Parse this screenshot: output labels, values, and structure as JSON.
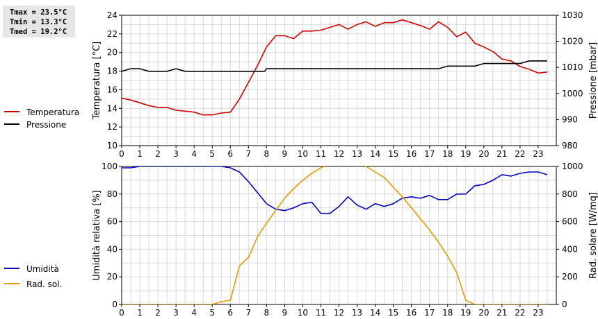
{
  "stats": {
    "tmax": "Tmax = 23.5°C",
    "tmin": "Tmin = 13.3°C",
    "tmed": "Tmed = 19.2°C"
  },
  "chart_data": [
    {
      "type": "line",
      "ylabel": "Temperatura [°C]",
      "y2label": "Pressione [mbar]",
      "ylim": [
        10,
        24
      ],
      "yticks": [
        10,
        12,
        14,
        16,
        18,
        20,
        22,
        24
      ],
      "y2lim": [
        980,
        1030
      ],
      "y2ticks": [
        980,
        990,
        1000,
        1010,
        1020,
        1030
      ],
      "xlim": [
        0,
        24
      ],
      "xticks": [
        "0",
        "1",
        "2",
        "3",
        "4",
        "5",
        "6",
        "7",
        "8",
        "9",
        "10",
        "11",
        "12",
        "13",
        "14",
        "15",
        "16",
        "17",
        "18",
        "19",
        "20",
        "21",
        "22",
        "23"
      ],
      "grid": true,
      "legend_position": "left",
      "series": [
        {
          "name": "Temperatura",
          "axis": "left",
          "color": "#cc0000",
          "x": [
            0,
            0.5,
            1,
            1.5,
            2,
            2.5,
            3,
            3.5,
            4,
            4.5,
            5,
            5.5,
            6,
            6.5,
            7,
            7.5,
            8,
            8.5,
            9,
            9.5,
            10,
            10.5,
            11,
            11.5,
            12,
            12.5,
            13,
            13.5,
            14,
            14.5,
            15,
            15.5,
            16,
            16.5,
            17,
            17.5,
            18,
            18.5,
            19,
            19.5,
            20,
            20.5,
            21,
            21.5,
            22,
            22.5,
            23,
            23.5
          ],
          "y": [
            15.1,
            14.9,
            14.6,
            14.3,
            14.1,
            14.1,
            13.8,
            13.7,
            13.6,
            13.3,
            13.3,
            13.5,
            13.6,
            15.0,
            16.8,
            18.6,
            20.6,
            21.8,
            21.8,
            21.5,
            22.3,
            22.3,
            22.4,
            22.7,
            23.0,
            22.5,
            23.0,
            23.3,
            22.8,
            23.2,
            23.2,
            23.5,
            23.2,
            22.9,
            22.5,
            23.3,
            22.7,
            21.7,
            22.2,
            21.0,
            20.6,
            20.1,
            19.3,
            19.1,
            18.5,
            18.2,
            17.8,
            17.9
          ]
        },
        {
          "name": "Pressione",
          "axis": "right",
          "color": "#000000",
          "x": [
            0,
            0.5,
            1,
            1.5,
            2,
            2.5,
            3,
            3.5,
            4,
            5,
            6,
            7,
            7.9,
            8,
            9,
            10,
            11,
            12,
            13,
            14,
            15,
            16,
            17,
            17.5,
            18,
            18.5,
            19,
            19.5,
            20,
            20.5,
            21,
            22,
            22.5,
            23,
            23.5
          ],
          "y": [
            1008.5,
            1009.5,
            1009.5,
            1008.5,
            1008.5,
            1008.5,
            1009.5,
            1008.5,
            1008.5,
            1008.5,
            1008.5,
            1008.5,
            1008.5,
            1009.5,
            1009.5,
            1009.5,
            1009.5,
            1009.5,
            1009.5,
            1009.5,
            1009.5,
            1009.5,
            1009.5,
            1009.5,
            1010.5,
            1010.5,
            1010.5,
            1010.5,
            1011.5,
            1011.5,
            1011.5,
            1011.5,
            1012.5,
            1012.5,
            1012.5
          ]
        }
      ]
    },
    {
      "type": "line",
      "ylabel": "Umidità relativa [%]",
      "y2label": "Rad. solare [W/mq]",
      "ylim": [
        0,
        100
      ],
      "yticks": [
        0,
        20,
        40,
        60,
        80,
        100
      ],
      "y2lim": [
        0,
        1000
      ],
      "y2ticks": [
        0,
        200,
        400,
        600,
        800,
        1000
      ],
      "xlim": [
        0,
        24
      ],
      "xticks": [
        "0",
        "1",
        "2",
        "3",
        "4",
        "5",
        "6",
        "7",
        "8",
        "9",
        "10",
        "11",
        "12",
        "13",
        "14",
        "15",
        "16",
        "17",
        "18",
        "19",
        "20",
        "21",
        "22",
        "23"
      ],
      "grid": true,
      "legend_position": "left",
      "series": [
        {
          "name": "Umidità",
          "axis": "left",
          "color": "#0000bb",
          "x": [
            0,
            0.5,
            1,
            2,
            3,
            4,
            5,
            5.5,
            6,
            6.5,
            7,
            7.5,
            8,
            8.5,
            9,
            9.5,
            10,
            10.5,
            11,
            11.5,
            12,
            12.5,
            13,
            13.5,
            14,
            14.5,
            15,
            15.5,
            16,
            16.5,
            17,
            17.5,
            18,
            18.5,
            19,
            19.5,
            20,
            20.5,
            21,
            21.5,
            22,
            22.5,
            23,
            23.5
          ],
          "y": [
            99,
            99,
            100,
            100,
            100,
            100,
            100,
            100,
            99,
            96,
            89,
            81,
            73,
            69,
            68,
            70,
            73,
            74,
            66,
            66,
            71,
            78,
            72,
            69,
            73,
            71,
            73,
            77,
            78,
            77,
            79,
            76,
            76,
            80,
            80,
            86,
            87,
            90,
            94,
            93,
            95,
            96,
            96,
            94
          ]
        },
        {
          "name": "Rad. sol.",
          "axis": "right",
          "color": "#e69900",
          "x": [
            0,
            1,
            2,
            3,
            4,
            5,
            5.5,
            6,
            6.5,
            7,
            7.5,
            8,
            8.5,
            9,
            9.5,
            10,
            10.5,
            11,
            11.5,
            12,
            12.5,
            13,
            13.5,
            14,
            14.5,
            15,
            15.5,
            16,
            16.5,
            17,
            17.5,
            18,
            18.5,
            19,
            19.5,
            20,
            21,
            22,
            23,
            23.5
          ],
          "y": [
            0,
            0,
            0,
            0,
            0,
            0,
            20,
            30,
            280,
            340,
            490,
            590,
            680,
            770,
            840,
            900,
            950,
            990,
            1020,
            1050,
            1070,
            1060,
            1000,
            960,
            920,
            850,
            780,
            700,
            620,
            540,
            450,
            350,
            230,
            30,
            0,
            0,
            0,
            0,
            0,
            0
          ]
        }
      ]
    }
  ]
}
